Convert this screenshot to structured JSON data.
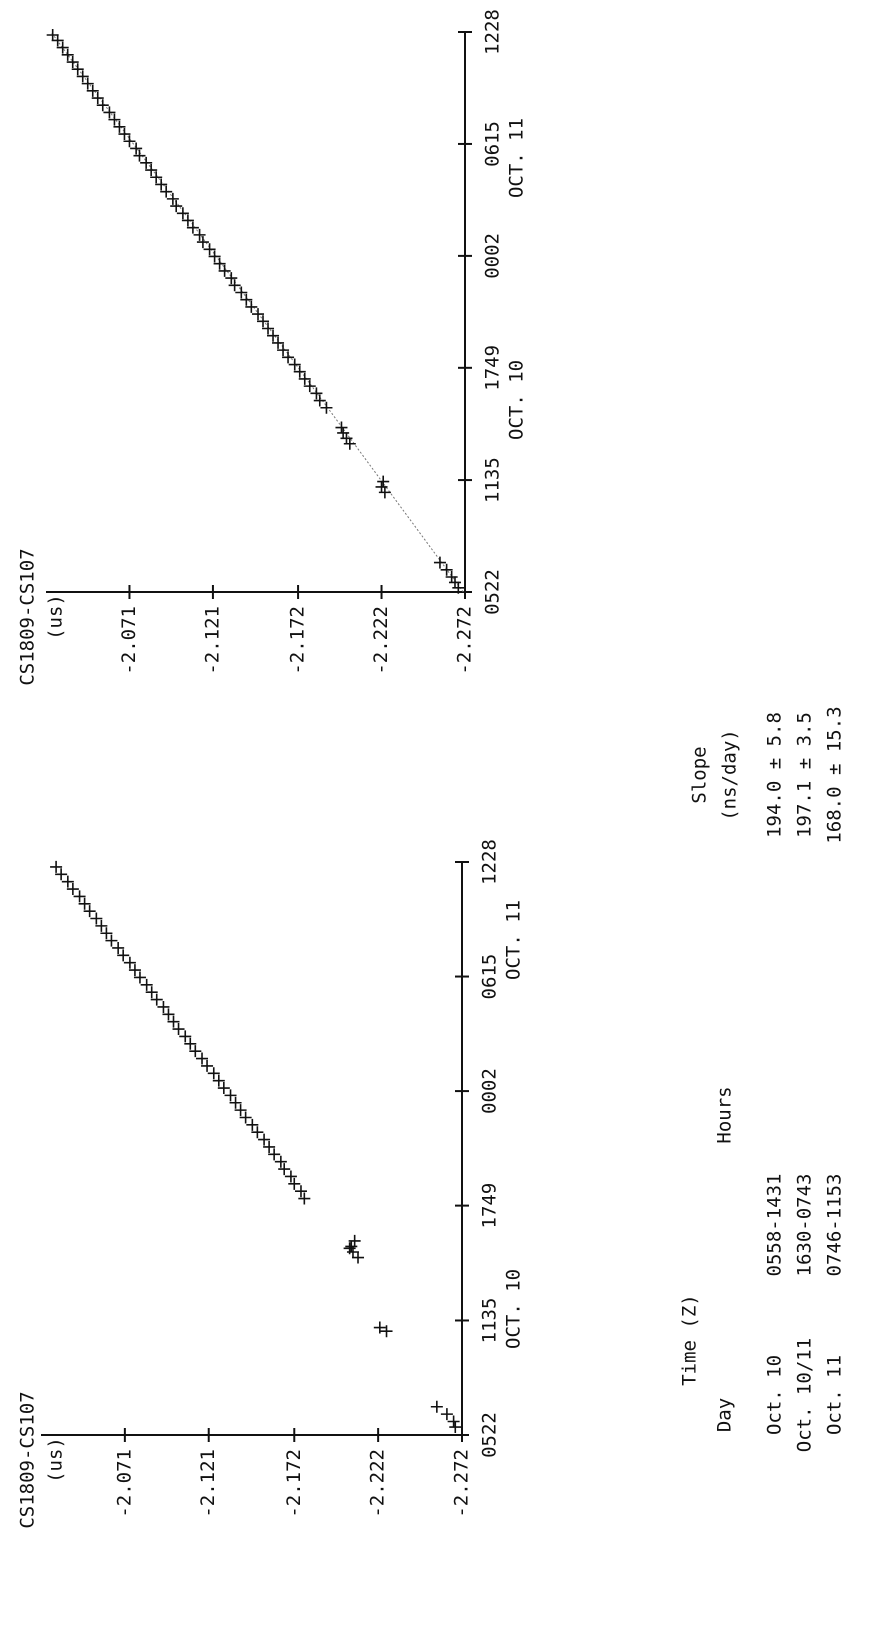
{
  "chart_data": [
    {
      "type": "scatter",
      "title": "CS1809-CS107",
      "ylabel": "(us)",
      "x_group_labels": [
        "OCT. 10",
        "OCT. 11"
      ],
      "xlim": [
        5.367,
        36.467
      ],
      "ylim": [
        -2.272,
        -2.021
      ],
      "xticks": [
        {
          "value": 5.367,
          "label": "0522"
        },
        {
          "value": 11.583,
          "label": "1135"
        },
        {
          "value": 17.817,
          "label": "1749"
        },
        {
          "value": 24.033,
          "label": "0002"
        },
        {
          "value": 30.25,
          "label": "0615"
        },
        {
          "value": 36.467,
          "label": "1228"
        }
      ],
      "yticks": [
        -2.272,
        -2.222,
        -2.172,
        -2.121,
        -2.071
      ],
      "x": [
        5.8,
        6.1,
        6.5,
        6.9,
        11.0,
        11.2,
        15.0,
        15.3,
        15.5,
        15.6,
        15.9,
        18.2,
        18.6,
        19.0,
        19.4,
        19.8,
        20.2,
        20.6,
        21.0,
        21.4,
        21.8,
        22.2,
        22.6,
        23.0,
        23.4,
        23.8,
        24.2,
        24.6,
        25.0,
        25.4,
        25.8,
        26.2,
        26.6,
        27.0,
        27.4,
        27.8,
        28.2,
        28.6,
        29.0,
        29.4,
        29.8,
        30.2,
        30.6,
        31.0,
        31.4,
        31.8,
        32.2,
        32.6,
        33.0,
        33.4,
        33.8,
        34.2,
        34.6,
        35.0,
        35.4,
        35.8,
        36.2
      ],
      "values": [
        -2.268,
        -2.267,
        -2.263,
        -2.257,
        -2.227,
        -2.223,
        -2.21,
        -2.207,
        -2.205,
        -2.206,
        -2.208,
        -2.178,
        -2.176,
        -2.172,
        -2.17,
        -2.166,
        -2.164,
        -2.16,
        -2.157,
        -2.154,
        -2.15,
        -2.147,
        -2.143,
        -2.14,
        -2.137,
        -2.134,
        -2.13,
        -2.127,
        -2.124,
        -2.12,
        -2.117,
        -2.113,
        -2.11,
        -2.107,
        -2.103,
        -2.1,
        -2.097,
        -2.094,
        -2.09,
        -2.087,
        -2.084,
        -2.08,
        -2.077,
        -2.074,
        -2.07,
        -2.067,
        -2.063,
        -2.06,
        -2.057,
        -2.054,
        -2.05,
        -2.047,
        -2.044,
        -2.04,
        -2.037,
        -2.033,
        -2.03
      ]
    },
    {
      "type": "scatter",
      "title": "CS1809-CS107",
      "ylabel": "(us)",
      "x_group_labels": [
        "OCT. 10",
        "OCT. 11"
      ],
      "xlim": [
        5.367,
        36.467
      ],
      "ylim": [
        -2.272,
        -2.021
      ],
      "xticks": [
        {
          "value": 5.367,
          "label": "0522"
        },
        {
          "value": 11.583,
          "label": "1135"
        },
        {
          "value": 17.817,
          "label": "1749"
        },
        {
          "value": 24.033,
          "label": "0002"
        },
        {
          "value": 30.25,
          "label": "0615"
        },
        {
          "value": 36.467,
          "label": "1228"
        }
      ],
      "yticks": [
        -2.272,
        -2.222,
        -2.172,
        -2.121,
        -2.071
      ],
      "x": [
        5.6,
        5.9,
        6.2,
        6.6,
        7.0,
        10.9,
        11.2,
        11.5,
        13.6,
        13.9,
        14.2,
        14.5,
        15.6,
        16.0,
        16.4,
        16.8,
        17.2,
        17.6,
        18.0,
        18.4,
        18.8,
        19.2,
        19.6,
        20.0,
        20.4,
        20.8,
        21.2,
        21.6,
        22.0,
        22.4,
        22.8,
        23.2,
        23.6,
        24.0,
        24.4,
        24.8,
        25.2,
        25.6,
        26.0,
        26.4,
        26.8,
        27.2,
        27.6,
        28.0,
        28.4,
        28.8,
        29.2,
        29.6,
        30.0,
        30.4,
        30.8,
        31.2,
        31.6,
        32.0,
        32.4,
        32.8,
        33.2,
        33.6,
        34.0,
        34.4,
        34.8,
        35.2,
        35.6,
        36.0,
        36.3
      ],
      "values": [
        -2.268,
        -2.266,
        -2.264,
        -2.261,
        -2.257,
        -2.224,
        -2.222,
        -2.223,
        -2.203,
        -2.201,
        -2.199,
        -2.198,
        -2.189,
        -2.185,
        -2.183,
        -2.179,
        -2.176,
        -2.173,
        -2.17,
        -2.166,
        -2.163,
        -2.16,
        -2.157,
        -2.154,
        -2.151,
        -2.148,
        -2.144,
        -2.141,
        -2.138,
        -2.134,
        -2.132,
        -2.128,
        -2.125,
        -2.122,
        -2.119,
        -2.115,
        -2.113,
        -2.109,
        -2.106,
        -2.103,
        -2.099,
        -2.097,
        -2.093,
        -2.09,
        -2.087,
        -2.084,
        -2.081,
        -2.077,
        -2.075,
        -2.071,
        -2.068,
        -2.065,
        -2.062,
        -2.059,
        -2.055,
        -2.052,
        -2.049,
        -2.046,
        -2.043,
        -2.04,
        -2.037,
        -2.034,
        -2.031,
        -2.028,
        -2.025
      ],
      "fit": {
        "x": [
          5.367,
          36.467
        ],
        "values": [
          -2.271,
          -2.024
        ]
      }
    }
  ],
  "table": {
    "header": {
      "time": "Time (Z)",
      "day": "Day",
      "hours": "Hours",
      "slope": "Slope",
      "slope_unit": "(ns/day)"
    },
    "rows": [
      [
        "Oct. 10",
        "0558-1431",
        "194.0 ± 5.8"
      ],
      [
        "Oct. 10/11",
        "1630-0743",
        "197.1 ± 3.5"
      ],
      [
        "Oct. 11",
        "0746-1153",
        "168.0 ± 15.3"
      ]
    ]
  }
}
